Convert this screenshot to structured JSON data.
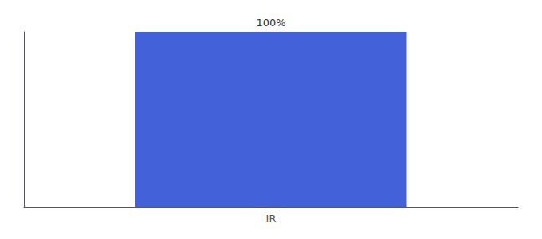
{
  "chart_data": {
    "type": "bar",
    "categories": [
      "IR"
    ],
    "values": [
      100
    ],
    "value_labels": [
      "100%"
    ],
    "data_labels": true,
    "color": "#4361d8",
    "ylim": [
      0,
      100
    ],
    "grid": false,
    "tick_labels": "x"
  }
}
